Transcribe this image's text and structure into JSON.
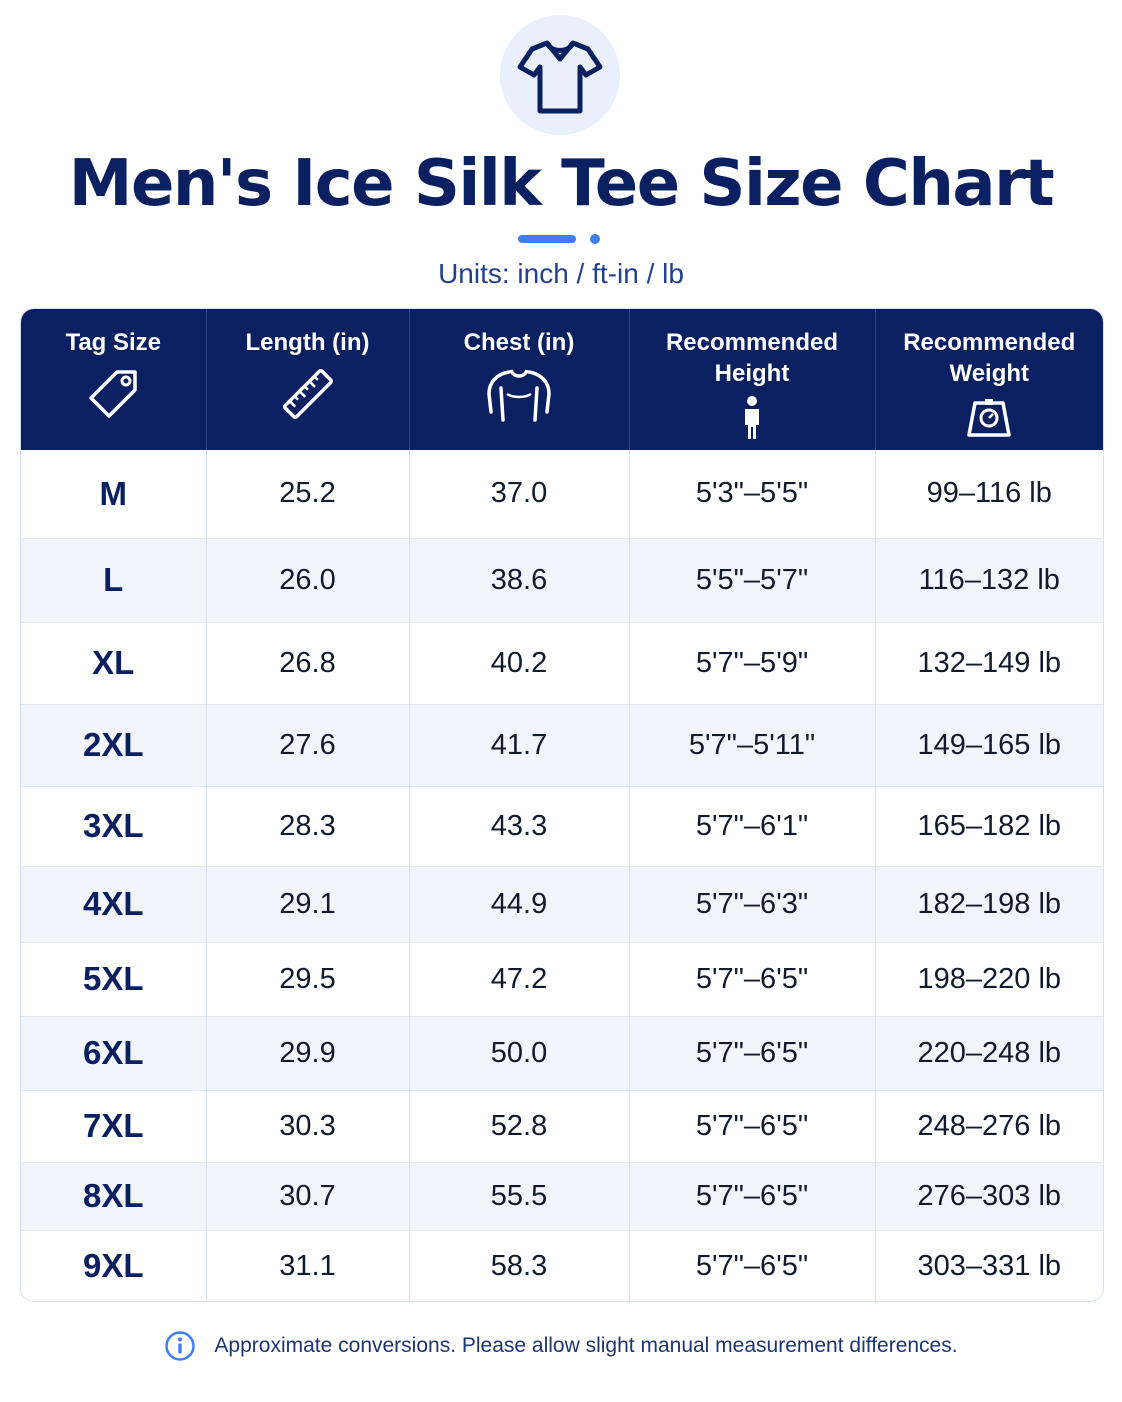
{
  "title": "Men's Ice Silk Tee Size Chart",
  "subtitle": "Units: inch / ft-in / lb",
  "colors": {
    "navy": "#0b2060",
    "accent": "#3d7ef0",
    "row_alt": "#f2f6fc"
  },
  "header_icon": "t-shirt-icon",
  "table": {
    "headers": [
      {
        "lines": [
          "Tag Size"
        ],
        "icon": "tag-icon"
      },
      {
        "lines": [
          "Length (in)"
        ],
        "icon": "ruler-icon"
      },
      {
        "lines": [
          "Chest (in)"
        ],
        "icon": "torso-icon"
      },
      {
        "lines": [
          "Recommended",
          "Height"
        ],
        "icon": "person-icon"
      },
      {
        "lines": [
          "Recommended",
          "Weight"
        ],
        "icon": "scale-icon"
      }
    ],
    "rows": [
      [
        "M",
        "25.2",
        "37.0",
        "5'3\"–5'5\"",
        "99–116 lb"
      ],
      [
        "L",
        "26.0",
        "38.6",
        "5'5\"–5'7\"",
        "116–132 lb"
      ],
      [
        "XL",
        "26.8",
        "40.2",
        "5'7\"–5'9\"",
        "132–149 lb"
      ],
      [
        "2XL",
        "27.6",
        "41.7",
        "5'7\"–5'11\"",
        "149–165 lb"
      ],
      [
        "3XL",
        "28.3",
        "43.3",
        "5'7\"–6'1\"",
        "165–182 lb"
      ],
      [
        "4XL",
        "29.1",
        "44.9",
        "5'7\"–6'3\"",
        "182–198 lb"
      ],
      [
        "5XL",
        "29.5",
        "47.2",
        "5'7\"–6'5\"",
        "198–220 lb"
      ],
      [
        "6XL",
        "29.9",
        "50.0",
        "5'7\"–6'5\"",
        "220–248 lb"
      ],
      [
        "7XL",
        "30.3",
        "52.8",
        "5'7\"–6'5\"",
        "248–276 lb"
      ],
      [
        "8XL",
        "30.7",
        "55.5",
        "5'7\"–6'5\"",
        "276–303 lb"
      ],
      [
        "9XL",
        "31.1",
        "58.3",
        "5'7\"–6'5\"",
        "303–331 lb"
      ]
    ]
  },
  "note": {
    "icon": "info-icon",
    "text": "Approximate conversions. Please allow slight manual measurement differences."
  }
}
